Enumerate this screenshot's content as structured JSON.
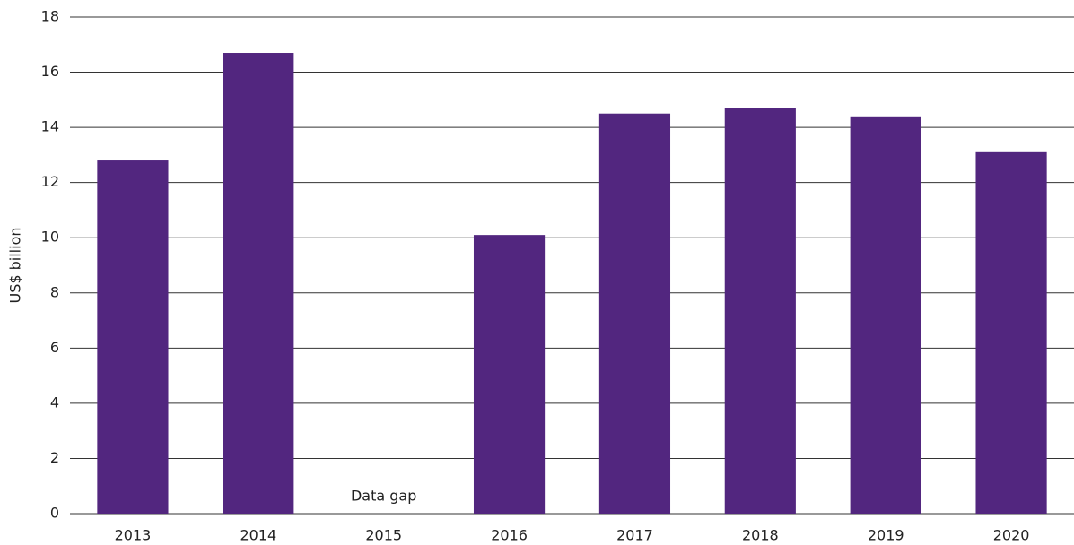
{
  "chart_data": {
    "type": "bar",
    "y_label": "US$ billion",
    "categories": [
      "2013",
      "2014",
      "2015",
      "2016",
      "2017",
      "2018",
      "2019",
      "2020"
    ],
    "values": [
      12.8,
      16.7,
      null,
      10.1,
      14.5,
      14.7,
      14.4,
      13.1
    ],
    "annotation": "Data gap",
    "color": "#52267f",
    "ylim": [
      0,
      18
    ],
    "yticks": [
      0,
      2,
      4,
      6,
      8,
      10,
      12,
      14,
      16,
      18
    ],
    "grid": true
  }
}
